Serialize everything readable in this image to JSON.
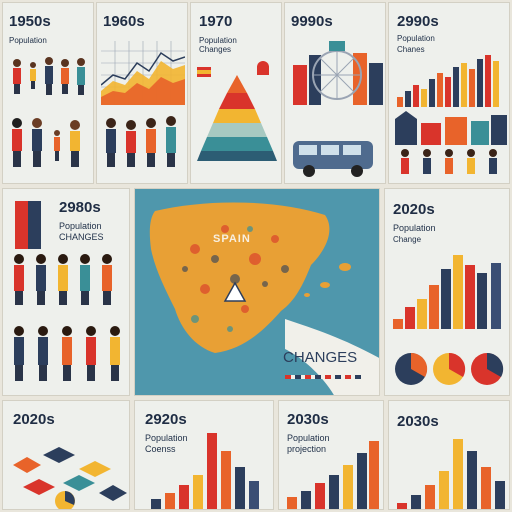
{
  "tiles": {
    "t1950": {
      "title": "1950s",
      "subtitle": "Population"
    },
    "t1960": {
      "title": "1960s"
    },
    "t1970": {
      "title": "1970",
      "subtitle": "Population Changes"
    },
    "t9990": {
      "title": "9990s"
    },
    "t2990": {
      "title": "2990s",
      "subtitle1": "Population",
      "subtitle2": "Chanes"
    },
    "t2980": {
      "title": "2980s",
      "subtitle1": "Population",
      "subtitle2": "CHANGES"
    },
    "map": {
      "label": "SPAIN",
      "caption": "CHANGES"
    },
    "t2020r": {
      "title": "2020s",
      "subtitle1": "Population",
      "subtitle2": "Change"
    },
    "t2020b": {
      "title": "2020s"
    },
    "t2920b": {
      "title": "2920s",
      "subtitle1": "Population",
      "subtitle2": "Coenss"
    },
    "t2030a": {
      "title": "2030s",
      "subtitle1": "Population",
      "subtitle2": "projection"
    },
    "t2030b": {
      "title": "2030s"
    }
  },
  "colors": {
    "navy": "#2c3e5c",
    "orange": "#e8632a",
    "red": "#d9342b",
    "yellow": "#f2b531",
    "teal": "#3a8f97",
    "sea": "#4f97ac",
    "land": "#e8a035"
  }
}
